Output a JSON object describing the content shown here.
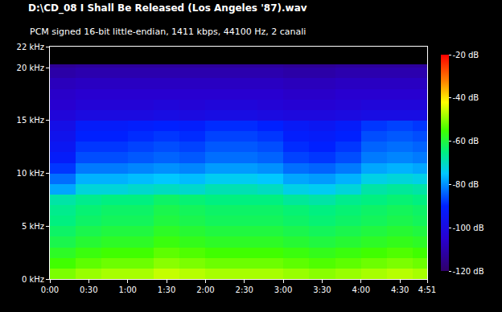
{
  "chart_data": {
    "type": "heatmap",
    "title": "D:\\CD_08 I Shall Be Released (Los Angeles '87).wav",
    "subtitle": "PCM signed 16-bit little-endian, 1411 kbps, 44100 Hz, 2 canali",
    "grid": false,
    "time_bins": [
      0,
      20,
      40,
      60,
      80,
      100,
      120,
      140,
      160,
      180,
      200,
      220,
      240,
      260,
      280,
      291
    ],
    "frequency_bins": [
      0,
      1,
      2,
      3,
      4,
      5,
      6,
      7,
      8,
      9,
      10,
      11,
      12,
      13,
      14,
      15,
      16,
      17,
      18,
      19,
      20,
      20.3,
      22
    ],
    "cells": [
      [
        -51,
        -49,
        -48,
        -48,
        -46,
        -47,
        -48,
        -48,
        -48,
        -49,
        -50,
        -49,
        -48,
        -47,
        -48
      ],
      [
        -55,
        -53,
        -52,
        -52,
        -50,
        -51,
        -52,
        -52,
        -52,
        -53,
        -54,
        -53,
        -52,
        -51,
        -52
      ],
      [
        -58,
        -56,
        -55,
        -55,
        -53,
        -54,
        -55,
        -55,
        -55,
        -56,
        -57,
        -56,
        -55,
        -54,
        -55
      ],
      [
        -61,
        -59,
        -58,
        -58,
        -56,
        -57,
        -58,
        -58,
        -58,
        -59,
        -60,
        -59,
        -58,
        -57,
        -58
      ],
      [
        -63,
        -61,
        -60,
        -60,
        -58,
        -59,
        -60,
        -60,
        -60,
        -61,
        -62,
        -61,
        -60,
        -59,
        -60
      ],
      [
        -65,
        -63,
        -62,
        -62,
        -60,
        -61,
        -62,
        -62,
        -62,
        -63,
        -64,
        -63,
        -62,
        -61,
        -62
      ],
      [
        -66,
        -64,
        -63,
        -63,
        -61,
        -62,
        -63,
        -63,
        -63,
        -64,
        -65,
        -64,
        -63,
        -62,
        -63
      ],
      [
        -68,
        -66,
        -65,
        -65,
        -63,
        -64,
        -65,
        -65,
        -65,
        -67,
        -68,
        -66,
        -65,
        -64,
        -65
      ],
      [
        -78,
        -72,
        -72,
        -71,
        -70,
        -71,
        -69,
        -69,
        -70,
        -73,
        -74,
        -72,
        -68,
        -67,
        -68
      ],
      [
        -83,
        -77,
        -77,
        -76,
        -75,
        -76,
        -74,
        -74,
        -75,
        -78,
        -79,
        -77,
        -73,
        -72,
        -73
      ],
      [
        -88,
        -82,
        -82,
        -81,
        -80,
        -81,
        -79,
        -79,
        -80,
        -83,
        -84,
        -82,
        -78,
        -77,
        -78
      ],
      [
        -92,
        -86,
        -86,
        -85,
        -84,
        -85,
        -83,
        -83,
        -84,
        -87,
        -88,
        -86,
        -82,
        -81,
        -82
      ],
      [
        -94,
        -88,
        -88,
        -87,
        -86,
        -87,
        -85,
        -85,
        -86,
        -89,
        -90,
        -88,
        -84,
        -83,
        -84
      ],
      [
        -96,
        -90,
        -90,
        -89,
        -88,
        -89,
        -87,
        -87,
        -88,
        -91,
        -92,
        -90,
        -86,
        -85,
        -86
      ],
      [
        -98,
        -92,
        -92,
        -91,
        -90,
        -91,
        -89,
        -89,
        -90,
        -93,
        -94,
        -92,
        -88,
        -87,
        -88
      ],
      [
        -102,
        -100,
        -100,
        -100,
        -99,
        -100,
        -99,
        -99,
        -100,
        -101,
        -101,
        -100,
        -99,
        -99,
        -99
      ],
      [
        -105,
        -103,
        -103,
        -103,
        -102,
        -103,
        -102,
        -102,
        -103,
        -104,
        -104,
        -103,
        -102,
        -102,
        -102
      ],
      [
        -106,
        -105,
        -105,
        -105,
        -105,
        -105,
        -105,
        -105,
        -105,
        -106,
        -106,
        -105,
        -105,
        -105,
        -105
      ],
      [
        -108,
        -107,
        -107,
        -107,
        -107,
        -107,
        -107,
        -107,
        -107,
        -108,
        -108,
        -107,
        -107,
        -107,
        -107
      ],
      [
        -111,
        -110,
        -110,
        -110,
        -110,
        -110,
        -110,
        -110,
        -110,
        -111,
        -111,
        -110,
        -110,
        -110,
        -110
      ],
      [
        -114,
        -113,
        -113,
        -113,
        -113,
        -113,
        -113,
        -113,
        -113,
        -114,
        -114,
        -113,
        -113,
        -113,
        -113
      ],
      [
        null,
        null,
        null,
        null,
        null,
        null,
        null,
        null,
        null,
        null,
        null,
        null,
        null,
        null,
        null
      ]
    ],
    "xlim": [
      0,
      291
    ],
    "xticks": [
      {
        "value": 0,
        "label": "0:00"
      },
      {
        "value": 30,
        "label": "0:30"
      },
      {
        "value": 60,
        "label": "1:00"
      },
      {
        "value": 90,
        "label": "1:30"
      },
      {
        "value": 120,
        "label": "2:00"
      },
      {
        "value": 150,
        "label": "2:30"
      },
      {
        "value": 180,
        "label": "3:00"
      },
      {
        "value": 210,
        "label": "3:30"
      },
      {
        "value": 240,
        "label": "4:00"
      },
      {
        "value": 270,
        "label": "4:30"
      },
      {
        "value": 291,
        "label": "4:51"
      }
    ],
    "ylim": [
      0,
      22
    ],
    "yticks": [
      {
        "value": 0,
        "label": "0 kHz"
      },
      {
        "value": 5,
        "label": "5 kHz"
      },
      {
        "value": 10,
        "label": "10 kHz"
      },
      {
        "value": 15,
        "label": "15 kHz"
      },
      {
        "value": 20,
        "label": "20 kHz"
      },
      {
        "value": 22,
        "label": "22 kHz"
      }
    ],
    "colorbar": {
      "range": [
        -120,
        -20
      ],
      "ticks": [
        {
          "value": -20,
          "label": "-20 dB"
        },
        {
          "value": -40,
          "label": "-40 dB"
        },
        {
          "value": -60,
          "label": "-60 dB"
        },
        {
          "value": -80,
          "label": "-80 dB"
        },
        {
          "value": -100,
          "label": "-100 dB"
        },
        {
          "value": -120,
          "label": "-120 dB"
        }
      ]
    }
  }
}
